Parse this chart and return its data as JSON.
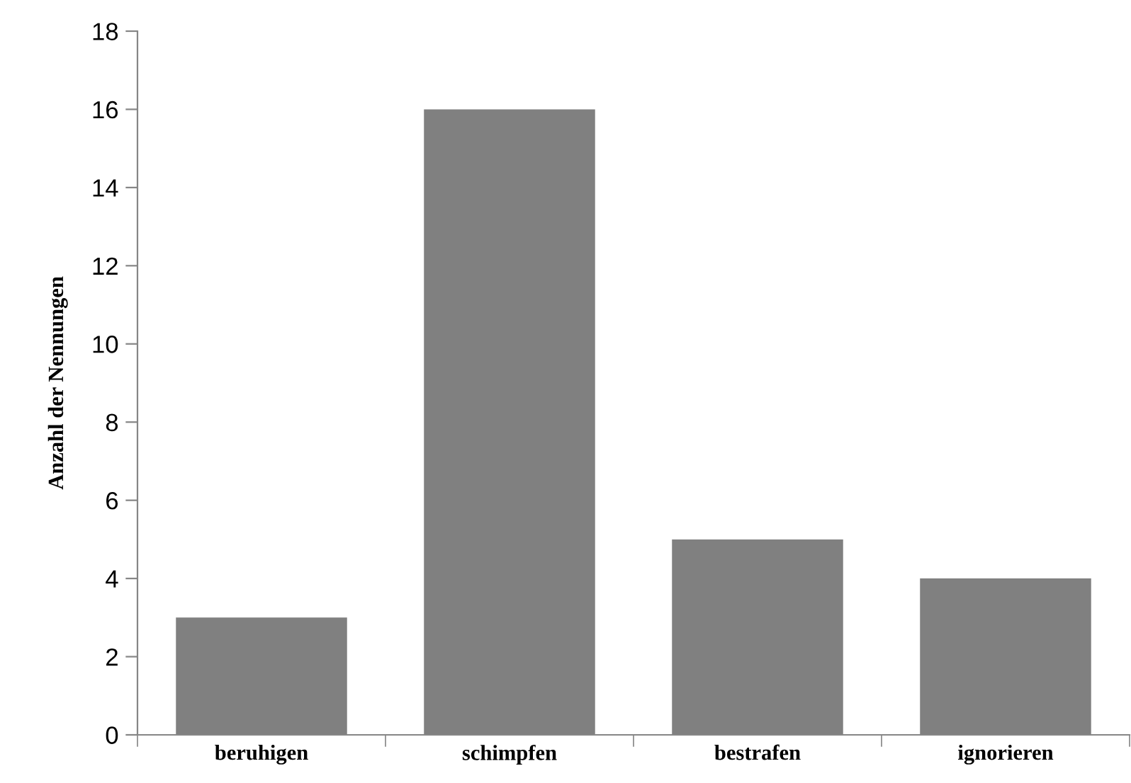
{
  "chart_data": {
    "type": "bar",
    "ylabel": "Anzahl der Nennungen",
    "categories": [
      "beruhigen",
      "schimpfen",
      "bestrafen",
      "ignorieren"
    ],
    "values": [
      3,
      16,
      5,
      4
    ],
    "color": "#808080",
    "ylim": [
      0,
      18
    ],
    "yticks": [
      0,
      2,
      4,
      6,
      8,
      10,
      12,
      14,
      16,
      18
    ],
    "grid": false,
    "legend": false
  }
}
